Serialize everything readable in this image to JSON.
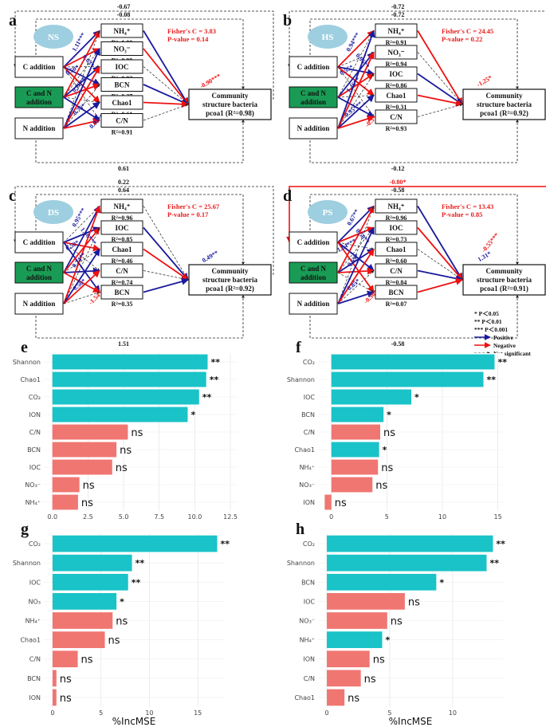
{
  "colors": {
    "positive": "#1a1a9e",
    "negative": "#ee1111",
    "bar_significant": "#19c3c8",
    "bar_ns": "#f07672",
    "badge": "#9ecfe0",
    "green_box": "#1a9b55",
    "stat_text": "#e81c1c"
  },
  "diagrams": [
    {
      "id": "a",
      "label": "a",
      "badge": "NS",
      "fisher": "Fisher's C = 3.83",
      "pvalue": "P-value = 0.14",
      "top_values": [
        "-0.67",
        "-0.08"
      ],
      "bottom_values": [
        "0.61"
      ],
      "inputs": [
        "C addition",
        "C and N addition",
        "N addition"
      ],
      "mids": [
        {
          "name": "NH₄⁺",
          "r2": "R²=1.00"
        },
        {
          "name": "NO₃⁻",
          "r2": "R²=0.99"
        },
        {
          "name": "IOC",
          "r2": "R²=0.93"
        },
        {
          "name": "BCN",
          "r2": "R²=0.37"
        },
        {
          "name": "Chao1",
          "r2": "R²=0.61"
        },
        {
          "name": "C/N",
          "r2": "R²=0.91"
        }
      ],
      "outcome": [
        "Community",
        "structure bacteria",
        "pcoa1 (R²=0.98)"
      ],
      "coefs": [
        "1.11***",
        "0.50*",
        "0.78**",
        "0.63*",
        "0.75*",
        "0.93**",
        "-0.90***",
        "0.84**"
      ]
    },
    {
      "id": "b",
      "label": "b",
      "badge": "HS",
      "fisher": "Fisher's C = 24.45",
      "pvalue": "P-value = 0.22",
      "top_values": [
        "-0.72",
        "-0.72"
      ],
      "bottom_values": [
        "-0.12"
      ],
      "inputs": [
        "C addition",
        "C and N addition",
        "N addition"
      ],
      "mids": [
        {
          "name": "NH₄⁺",
          "r2": "R²=0.91"
        },
        {
          "name": "NO₃⁻",
          "r2": "R²=0.94"
        },
        {
          "name": "IOC",
          "r2": "R²=0.86"
        },
        {
          "name": "Chao1",
          "r2": "R²=0.31"
        },
        {
          "name": "C/N",
          "r2": "R²=0.93"
        }
      ],
      "outcome": [
        "Community",
        "structure bacteria",
        "pcoa1 (R²=0.92)"
      ],
      "coefs": [
        "0.94***",
        "0.55*",
        "1.46**",
        "0.96**",
        "0.95***",
        "-0.3*",
        "-1.25*",
        "-0.77***"
      ]
    },
    {
      "id": "c",
      "label": "c",
      "badge": "DS",
      "fisher": "Fisher's C = 25.67",
      "pvalue": "P-value = 0.17",
      "top_values": [
        "0.22",
        "0.64"
      ],
      "bottom_values": [
        "1.51"
      ],
      "inputs": [
        "C addition",
        "C and N addition",
        "N addition"
      ],
      "mids": [
        {
          "name": "NH₄⁺",
          "r2": "R²=0.96"
        },
        {
          "name": "IOC",
          "r2": "R²=0.85"
        },
        {
          "name": "Chao1",
          "r2": "R²=0.46"
        },
        {
          "name": "C/N",
          "r2": "R²=0.74"
        },
        {
          "name": "BCN",
          "r2": "R²=0.35"
        }
      ],
      "outcome": [
        "Community",
        "structure bacteria",
        "pcoa1 (R²=0.92)"
      ],
      "coefs": [
        "0.95***",
        "0.50*",
        "0.74**",
        "1.46***",
        "0.50*",
        "-1.54**",
        "0.49**",
        "-0.47*"
      ]
    },
    {
      "id": "d",
      "label": "d",
      "badge": "PS",
      "fisher": "Fisher's C = 13.43",
      "pvalue": "P-value = 0.85",
      "top_values": [
        "-0.80*",
        "-0.58"
      ],
      "bottom_values": [
        "-0.58"
      ],
      "inputs": [
        "C addition",
        "C and N addition",
        "N addition"
      ],
      "mids": [
        {
          "name": "NH₄⁺",
          "r2": "R²=0.96"
        },
        {
          "name": "IOC",
          "r2": "R²=0.73"
        },
        {
          "name": "Chao1",
          "r2": "R²=0.60"
        },
        {
          "name": "C/N",
          "r2": "R²=0.84"
        },
        {
          "name": "BCN",
          "r2": "R²=0.07"
        }
      ],
      "outcome": [
        "Community",
        "structure bacteria",
        "pcoa1 (R²=0.91)"
      ],
      "coefs": [
        "0.67**",
        "1.04***",
        "0.69*",
        "0.58**",
        "0.85*",
        "-0.56*",
        "1.31*",
        "-0.49*",
        "-0.55***"
      ]
    }
  ],
  "legend": {
    "items": [
      "*    P＜0.05",
      "**   P＜0.01",
      "***  P＜0.001"
    ],
    "lines": [
      "Positive",
      "Negative",
      "Not significant"
    ]
  },
  "chart_data": [
    {
      "id": "e",
      "type": "bar",
      "orientation": "horizontal",
      "categories": [
        "Shannon",
        "Chao1",
        "CO₂",
        "ION",
        "C/N",
        "BCN",
        "IOC",
        "NO₃⁻",
        "NH₄⁺"
      ],
      "values": [
        10.9,
        10.8,
        10.3,
        9.5,
        5.3,
        4.5,
        4.2,
        1.9,
        1.8
      ],
      "significance": [
        "**",
        "**",
        "**",
        "*",
        "ns",
        "ns",
        "ns",
        "ns",
        "ns"
      ],
      "xlabel": "",
      "xticks": [
        "0.0",
        "2.5",
        "5.0",
        "7.5",
        "10.0",
        "12.5"
      ],
      "xlim": [
        -0.6,
        13.0
      ]
    },
    {
      "id": "f",
      "type": "bar",
      "orientation": "horizontal",
      "categories": [
        "CO₂",
        "Shannon",
        "IOC",
        "BCN",
        "C/N",
        "Chao1",
        "NH₄⁺",
        "NO₃⁻",
        "ION"
      ],
      "values": [
        14.7,
        13.7,
        7.2,
        4.7,
        4.4,
        4.3,
        4.2,
        3.7,
        -0.6
      ],
      "significance": [
        "**",
        "**",
        "*",
        "*",
        "ns",
        "*",
        "ns",
        "ns",
        "ns"
      ],
      "xlabel": "",
      "xticks": [
        "0",
        "5",
        "10",
        "15"
      ],
      "xlim": [
        -1.2,
        15.6
      ]
    },
    {
      "id": "g",
      "type": "bar",
      "orientation": "horizontal",
      "categories": [
        "CO₂",
        "Shannon",
        "IOC",
        "NO₃",
        "NH₄⁺",
        "Chao1",
        "C/N",
        "BCN",
        "ION"
      ],
      "values": [
        17.0,
        8.2,
        7.8,
        6.6,
        6.2,
        5.4,
        2.6,
        0.4,
        0.4
      ],
      "significance": [
        "**",
        "**",
        "**",
        "*",
        "ns",
        "ns",
        "ns",
        "ns",
        "ns"
      ],
      "xlabel": "%IncMSE",
      "xticks": [
        "0",
        "5",
        "10",
        "15"
      ],
      "xlim": [
        -0.9,
        17.7
      ]
    },
    {
      "id": "h",
      "type": "bar",
      "orientation": "horizontal",
      "categories": [
        "CO₂",
        "Shannon",
        "BCN",
        "IOC",
        "NO₃⁻",
        "NH₄⁺",
        "ION",
        "C/N",
        "Chao1"
      ],
      "values": [
        13.2,
        12.7,
        8.7,
        6.2,
        4.8,
        4.4,
        3.4,
        2.7,
        1.4
      ],
      "significance": [
        "**",
        "**",
        "*",
        "ns",
        "ns",
        "*",
        "ns",
        "ns",
        "ns"
      ],
      "xlabel": "%IncMSE",
      "xticks": [
        "0",
        "5",
        "10"
      ],
      "xlim": [
        -0.7,
        14.0
      ]
    }
  ]
}
